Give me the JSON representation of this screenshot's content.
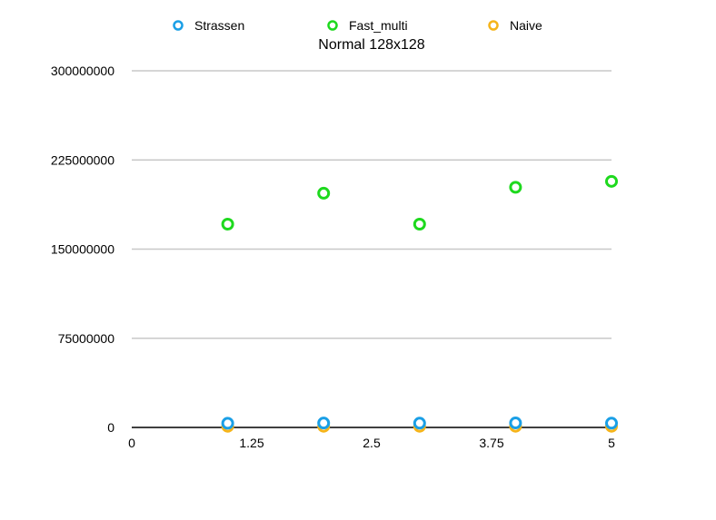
{
  "chart_data": {
    "type": "scatter",
    "title": "Normal 128x128",
    "xlabel": "",
    "ylabel": "",
    "xlim": [
      0,
      5
    ],
    "ylim": [
      0,
      300000000
    ],
    "x_ticks": [
      0,
      1.25,
      2.5,
      3.75,
      5
    ],
    "x_tick_labels": [
      "0",
      "1.25",
      "2.5",
      "3.75",
      "5"
    ],
    "y_ticks": [
      0,
      75000000,
      150000000,
      225000000,
      300000000
    ],
    "y_tick_labels": [
      "0",
      "75000000",
      "150000000",
      "225000000",
      "300000000"
    ],
    "grid": "horizontal",
    "legend_position": "top",
    "series": [
      {
        "name": "Strassen",
        "color": "#1a9fe6",
        "x": [
          1,
          2,
          3,
          4,
          5
        ],
        "y": [
          3500000,
          3700000,
          3600000,
          3800000,
          3600000
        ]
      },
      {
        "name": "Fast_multi",
        "color": "#1ed91e",
        "x": [
          1,
          2,
          3,
          4,
          5
        ],
        "y": [
          171000000,
          197000000,
          171000000,
          202000000,
          207000000
        ]
      },
      {
        "name": "Naive",
        "color": "#f5b41a",
        "x": [
          1,
          2,
          3,
          4,
          5
        ],
        "y": [
          1000000,
          1000000,
          1000000,
          1000000,
          1000000
        ]
      }
    ]
  }
}
